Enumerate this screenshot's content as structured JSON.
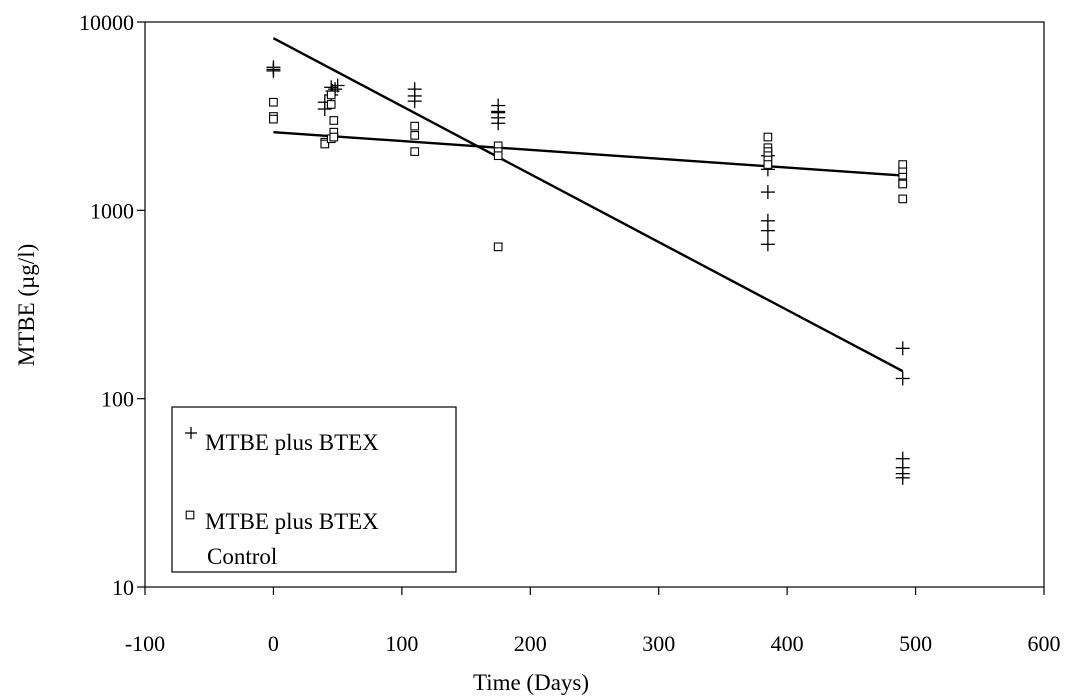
{
  "chart_data": {
    "type": "scatter",
    "title": "",
    "xlabel": "Time (Days)",
    "ylabel": "MTBE (µg/l)",
    "xlim": [
      -100,
      600
    ],
    "ylim": [
      10,
      10000
    ],
    "yscale": "log",
    "x_ticks": [
      "-100",
      "0",
      "100",
      "200",
      "300",
      "400",
      "500",
      "600"
    ],
    "y_ticks": [
      "10",
      "100",
      "1000",
      "10000"
    ],
    "grid": false,
    "legend_position": "bottom-left",
    "series": [
      {
        "name": "MTBE plus BTEX",
        "marker": "plus",
        "color": "#000000",
        "x": [
          0,
          0,
          0,
          40,
          40,
          45,
          45,
          46,
          48,
          50,
          110,
          110,
          110,
          175,
          175,
          175,
          175,
          175,
          385,
          385,
          385,
          385,
          385,
          385,
          490,
          490,
          490,
          490,
          490,
          490
        ],
        "y": [
          5750,
          5600,
          5500,
          3750,
          3450,
          4500,
          4100,
          4300,
          4400,
          4600,
          4400,
          4050,
          3800,
          3600,
          3350,
          3300,
          3100,
          2900,
          1950,
          1650,
          1250,
          880,
          780,
          660,
          185,
          128,
          48,
          43,
          40,
          38
        ]
      },
      {
        "name": "MTBE plus BTEX Control",
        "marker": "square",
        "color": "#000000",
        "x": [
          0,
          0,
          0,
          40,
          40,
          45,
          45,
          45,
          47,
          47,
          47,
          110,
          110,
          110,
          175,
          175,
          175,
          175,
          385,
          385,
          385,
          385,
          385,
          385,
          490,
          490,
          490,
          490,
          490,
          490
        ],
        "y": [
          3750,
          3150,
          3050,
          2300,
          2250,
          4100,
          3650,
          2400,
          3000,
          2600,
          2450,
          2800,
          2500,
          2050,
          2200,
          2050,
          1950,
          640,
          2450,
          2150,
          2050,
          1950,
          1850,
          1750,
          1750,
          1600,
          1500,
          1400,
          1380,
          1150
        ]
      }
    ],
    "trendlines": [
      {
        "series": "MTBE plus BTEX",
        "type": "exponential",
        "x": [
          0,
          490
        ],
        "y": [
          8200,
          140
        ]
      },
      {
        "series": "MTBE plus BTEX Control",
        "type": "exponential",
        "x": [
          0,
          490
        ],
        "y": [
          2600,
          1530
        ]
      }
    ]
  }
}
